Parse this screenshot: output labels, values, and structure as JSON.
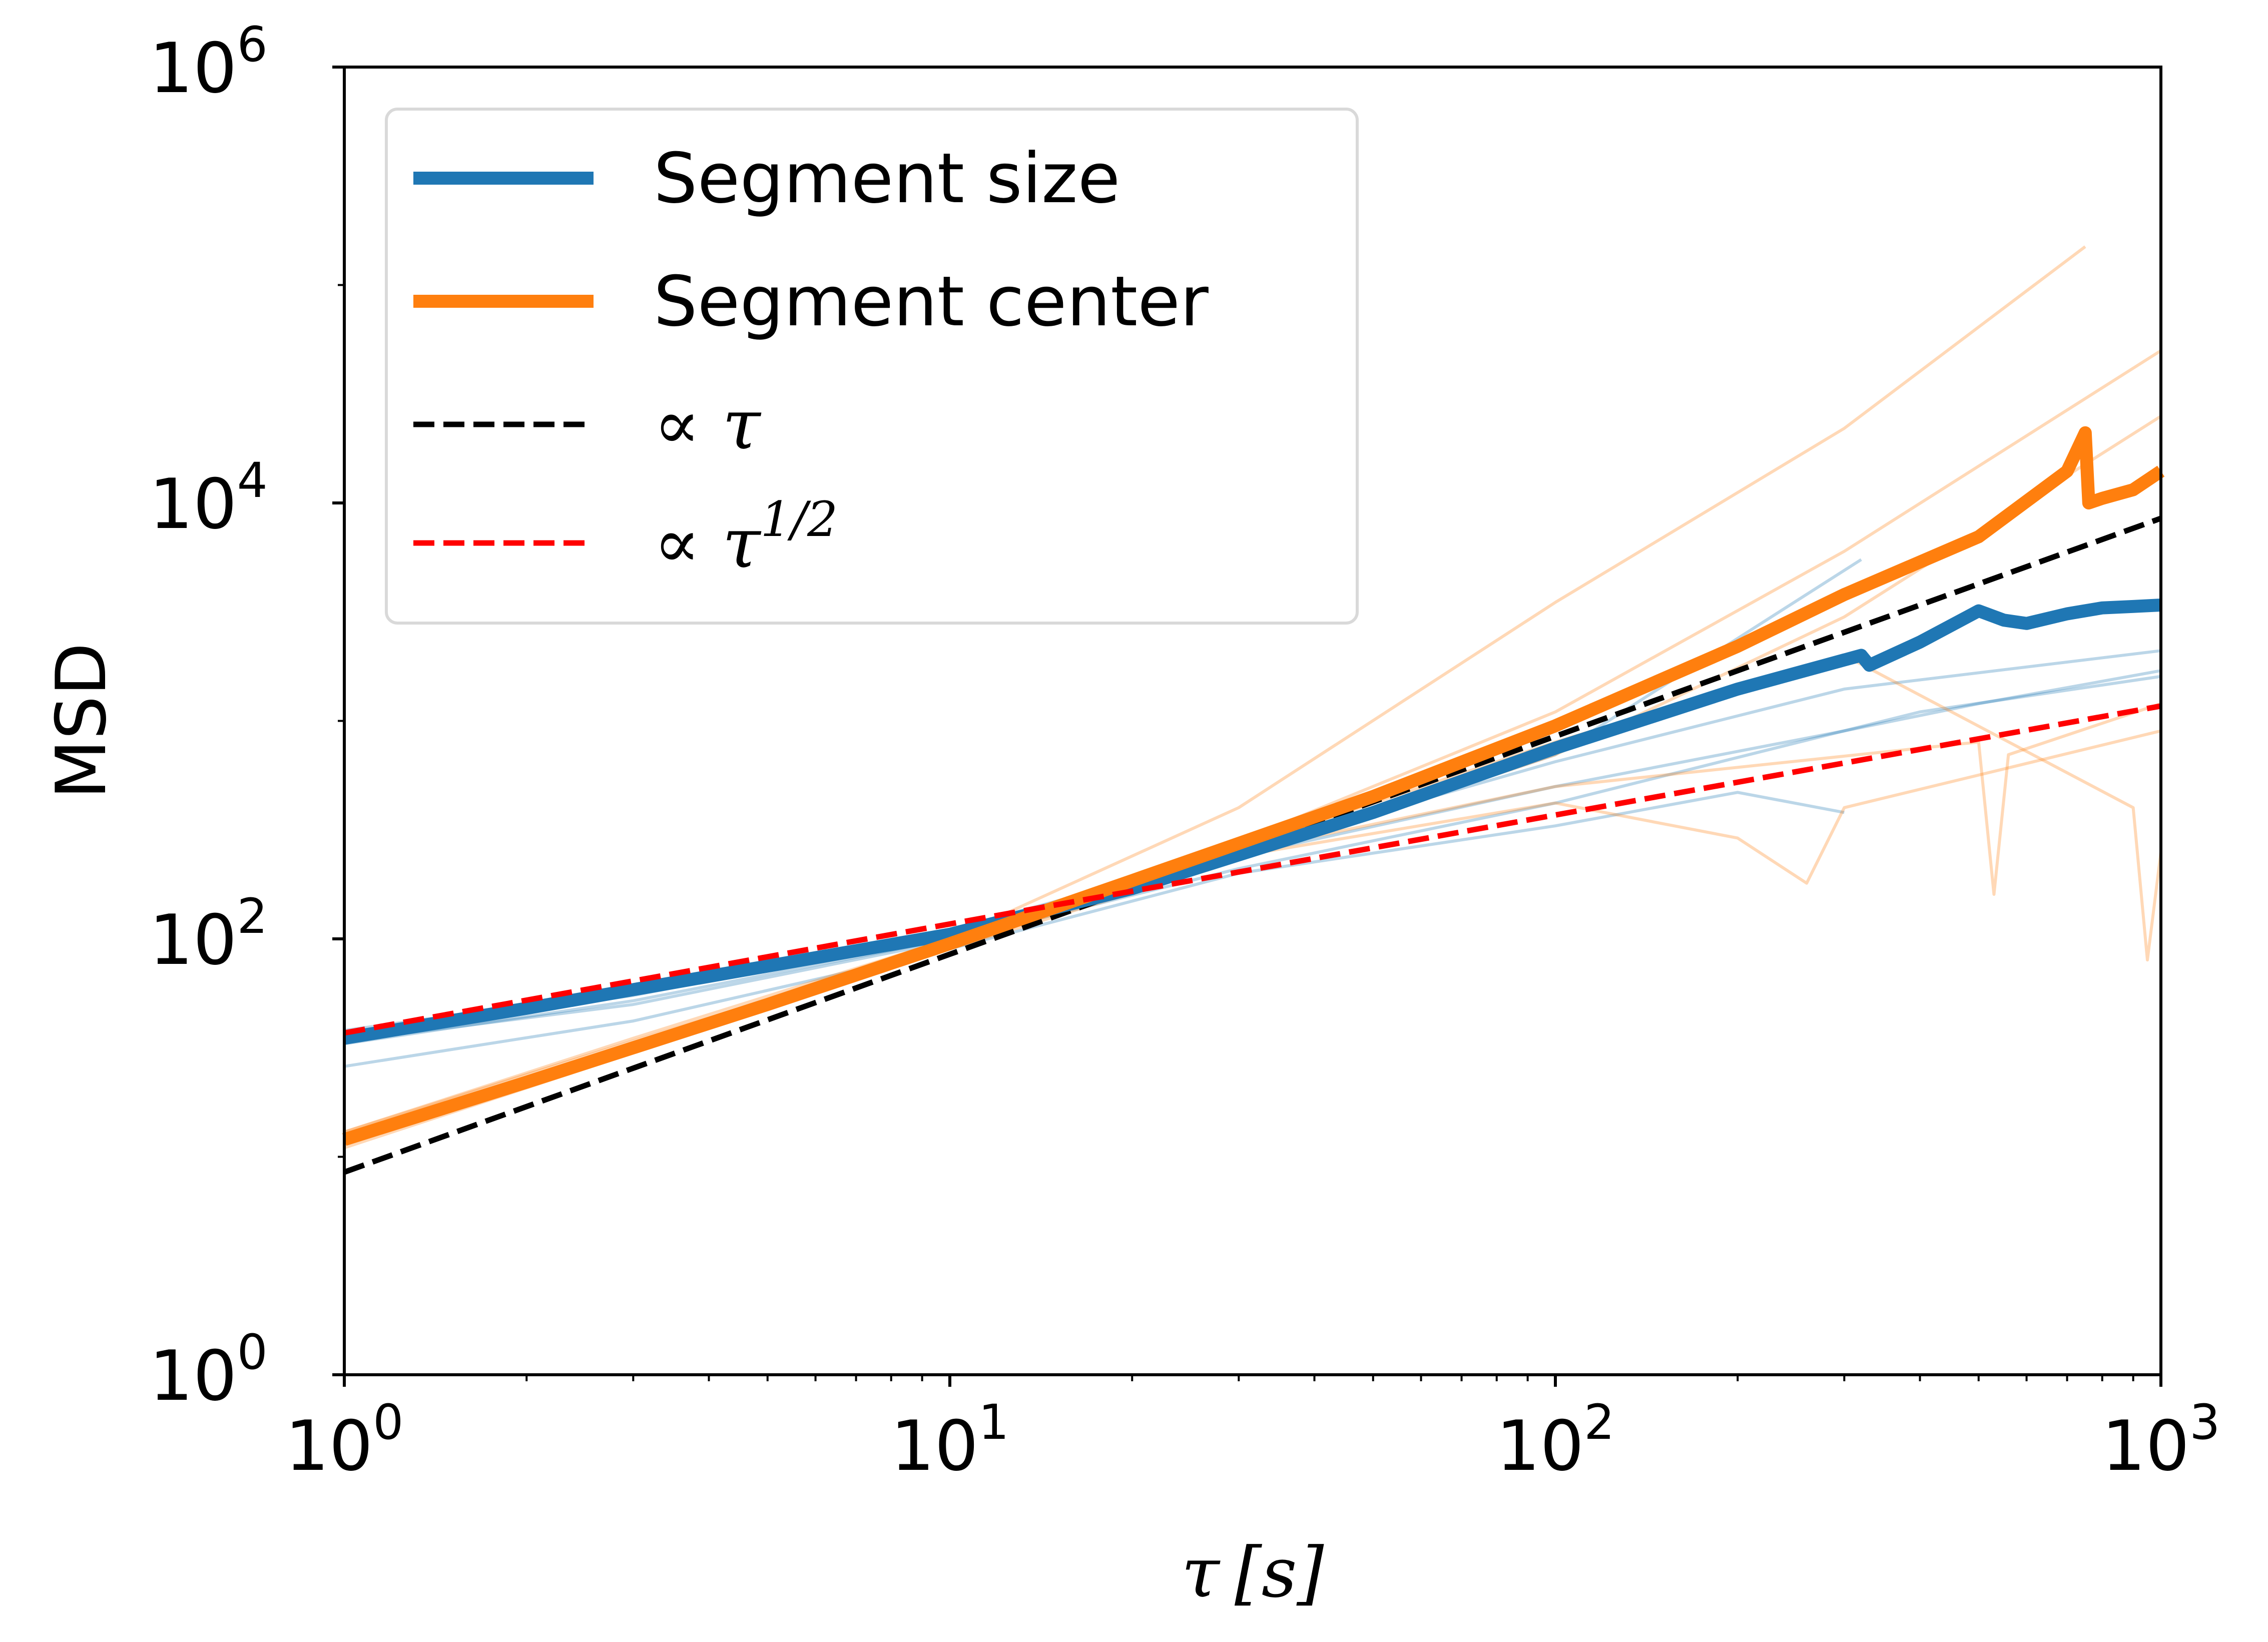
{
  "chart_data": {
    "type": "line",
    "xscale": "log",
    "yscale": "log",
    "xlim": [
      1,
      1000
    ],
    "ylim": [
      1,
      1000000
    ],
    "x_ticks": [
      {
        "base": "10",
        "exp": "0"
      },
      {
        "base": "10",
        "exp": "1"
      },
      {
        "base": "10",
        "exp": "2"
      },
      {
        "base": "10",
        "exp": "3"
      }
    ],
    "y_ticks": [
      {
        "base": "10",
        "exp": "0"
      },
      {
        "base": "10",
        "exp": "2"
      },
      {
        "base": "10",
        "exp": "4"
      },
      {
        "base": "10",
        "exp": "6"
      }
    ],
    "xlabel": {
      "symbol": "τ",
      "unit": "[s]"
    },
    "ylabel": "MSD",
    "grid": false,
    "legend_position": "top-left",
    "legend": [
      {
        "label": "Segment size",
        "color": "#1f77b4",
        "style": "solid"
      },
      {
        "label": "Segment center",
        "color": "#ff7f0e",
        "style": "solid"
      },
      {
        "label": "∝ τ",
        "color": "#000000",
        "style": "dashed"
      },
      {
        "label": "∝ τ",
        "sup": "1/2",
        "color": "#ff0000",
        "style": "dashed"
      }
    ],
    "series": [
      {
        "name": "Segment size",
        "color": "#1f77b4",
        "x": [
          1,
          2,
          5,
          10,
          20,
          50,
          100,
          200,
          320,
          330,
          400,
          500,
          550,
          600,
          700,
          800,
          900,
          1000
        ],
        "y": [
          35,
          48,
          75,
          105,
          170,
          380,
          750,
          1400,
          2000,
          1800,
          2300,
          3200,
          2900,
          2800,
          3100,
          3300,
          3350,
          3400
        ]
      },
      {
        "name": "Segment center",
        "color": "#ff7f0e",
        "x": [
          1,
          2,
          5,
          10,
          20,
          50,
          100,
          200,
          300,
          500,
          700,
          750,
          760,
          800,
          900,
          1000
        ],
        "y": [
          12,
          22,
          50,
          95,
          185,
          450,
          950,
          2200,
          3800,
          7000,
          14000,
          21000,
          10000,
          10500,
          11500,
          14000
        ]
      },
      {
        "name": "∝ τ",
        "color": "#000000",
        "style": "dashed",
        "x": [
          1,
          1000
        ],
        "y": [
          8.5,
          8500
        ]
      },
      {
        "name": "∝ τ^1/2",
        "color": "#ff0000",
        "style": "dashed",
        "x": [
          1,
          1000
        ],
        "y": [
          37,
          1170
        ]
      }
    ],
    "individual_traces": {
      "Segment size": [
        {
          "x": [
            1,
            3,
            10,
            30,
            100,
            200,
            300
          ],
          "y": [
            26,
            42,
            90,
            200,
            330,
            470,
            380
          ]
        },
        {
          "x": [
            1,
            3,
            10,
            30,
            100,
            300,
            1000
          ],
          "y": [
            38,
            58,
            110,
            250,
            650,
            1400,
            2100
          ]
        },
        {
          "x": [
            1,
            3,
            10,
            30,
            100,
            320
          ],
          "y": [
            33,
            52,
            100,
            230,
            700,
            5500
          ]
        },
        {
          "x": [
            1,
            3,
            10,
            30,
            100,
            300,
            500,
            1000
          ],
          "y": [
            36,
            55,
            105,
            240,
            500,
            900,
            1200,
            1700
          ]
        },
        {
          "x": [
            1,
            3,
            10,
            30,
            100,
            400,
            1000
          ],
          "y": [
            34,
            50,
            98,
            210,
            420,
            1100,
            1600
          ]
        }
      ],
      "Segment center": [
        {
          "x": [
            1,
            3,
            10,
            30,
            100,
            300,
            750
          ],
          "y": [
            12,
            32,
            100,
            400,
            3500,
            22000,
            150000
          ]
        },
        {
          "x": [
            1,
            3,
            10,
            30,
            100,
            300,
            1000
          ],
          "y": [
            13,
            34,
            95,
            280,
            1100,
            6000,
            50000
          ]
        },
        {
          "x": [
            1,
            3,
            10,
            30,
            100,
            300,
            1000
          ],
          "y": [
            11,
            30,
            90,
            230,
            700,
            3000,
            25000
          ]
        },
        {
          "x": [
            1,
            3,
            10,
            30,
            100,
            200,
            260,
            300,
            1000
          ],
          "y": [
            12,
            31,
            92,
            240,
            420,
            290,
            180,
            400,
            900
          ]
        },
        {
          "x": [
            1,
            3,
            10,
            30,
            100,
            500,
            530,
            560,
            1000
          ],
          "y": [
            12,
            33,
            95,
            250,
            500,
            800,
            160,
            700,
            1200
          ]
        },
        {
          "x": [
            1,
            3,
            10,
            30,
            100,
            300,
            900,
            950,
            1000
          ],
          "y": [
            13,
            35,
            100,
            260,
            800,
            2000,
            400,
            80,
            250
          ]
        }
      ]
    }
  }
}
